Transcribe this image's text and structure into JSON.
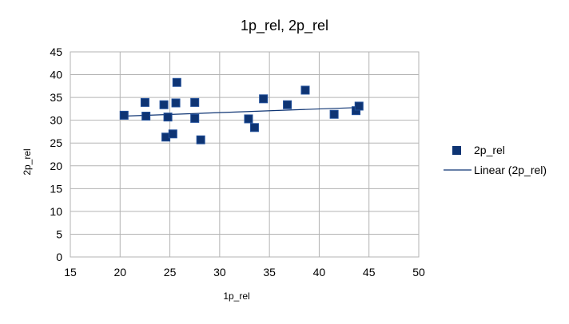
{
  "chart_data": {
    "type": "scatter",
    "title": "1p_rel, 2p_rel",
    "xlabel": "1p_rel",
    "ylabel": "2p_rel",
    "xlim": [
      15,
      50
    ],
    "ylim": [
      0,
      45
    ],
    "x_ticks": [
      15,
      20,
      25,
      30,
      35,
      40,
      45,
      50
    ],
    "y_ticks": [
      0,
      5,
      10,
      15,
      20,
      25,
      30,
      35,
      40,
      45
    ],
    "grid": true,
    "legend_position": "right",
    "series": [
      {
        "name": "2p_rel",
        "color": "#0e3473",
        "marker": "square",
        "points": [
          {
            "x": 20.4,
            "y": 31.1
          },
          {
            "x": 22.5,
            "y": 33.9
          },
          {
            "x": 22.6,
            "y": 30.9
          },
          {
            "x": 24.4,
            "y": 33.4
          },
          {
            "x": 24.6,
            "y": 26.3
          },
          {
            "x": 24.8,
            "y": 30.7
          },
          {
            "x": 25.3,
            "y": 27.0
          },
          {
            "x": 25.6,
            "y": 33.8
          },
          {
            "x": 25.7,
            "y": 38.3
          },
          {
            "x": 27.5,
            "y": 33.9
          },
          {
            "x": 27.5,
            "y": 30.4
          },
          {
            "x": 28.1,
            "y": 25.7
          },
          {
            "x": 32.9,
            "y": 30.3
          },
          {
            "x": 33.5,
            "y": 28.4
          },
          {
            "x": 34.4,
            "y": 34.7
          },
          {
            "x": 36.8,
            "y": 33.4
          },
          {
            "x": 38.6,
            "y": 36.6
          },
          {
            "x": 41.5,
            "y": 31.3
          },
          {
            "x": 43.7,
            "y": 32.1
          },
          {
            "x": 44.0,
            "y": 33.1
          }
        ]
      }
    ],
    "trendline": {
      "name": "Linear (2p_rel)",
      "type": "linear",
      "color": "#0e3473",
      "x_range": [
        20.4,
        44.0
      ],
      "y_range": [
        30.9,
        32.8
      ]
    }
  }
}
